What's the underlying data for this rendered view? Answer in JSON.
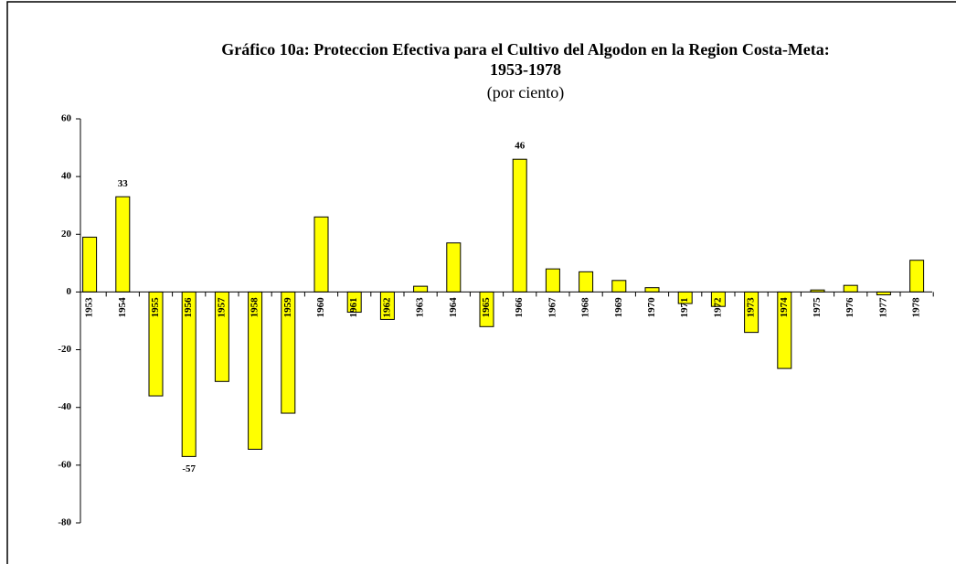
{
  "chart_data": {
    "type": "bar",
    "title": [
      "Gráfico 10a:  Proteccion Efectiva para el Cultivo del Algodon en la Region Costa-Meta:",
      "1953-1978"
    ],
    "subtitle": "(por ciento)",
    "categories": [
      "1953",
      "1954",
      "1955",
      "1956",
      "1957",
      "1958",
      "1959",
      "1960",
      "1961",
      "1962",
      "1963",
      "1964",
      "1965",
      "1966",
      "1967",
      "1968",
      "1969",
      "1970",
      "1971",
      "1972",
      "1973",
      "1974",
      "1975",
      "1976",
      "1977",
      "1978"
    ],
    "values": [
      19,
      33,
      -36,
      -57,
      -31,
      -54.5,
      -42,
      26,
      -7,
      -9.5,
      2,
      17,
      -12,
      46,
      8,
      7,
      4,
      1.5,
      -4,
      -5,
      -14,
      -26.5,
      0.7,
      2.3,
      -1,
      11
    ],
    "value_labels": [
      null,
      "33",
      null,
      "-57",
      null,
      null,
      null,
      null,
      null,
      null,
      null,
      null,
      null,
      "46",
      null,
      null,
      null,
      null,
      null,
      null,
      null,
      null,
      null,
      null,
      null,
      null
    ],
    "color": "#ffff00",
    "ylim": [
      -80,
      60
    ],
    "yticks": [
      -80,
      -60,
      -40,
      -20,
      0,
      20,
      40,
      60
    ]
  }
}
